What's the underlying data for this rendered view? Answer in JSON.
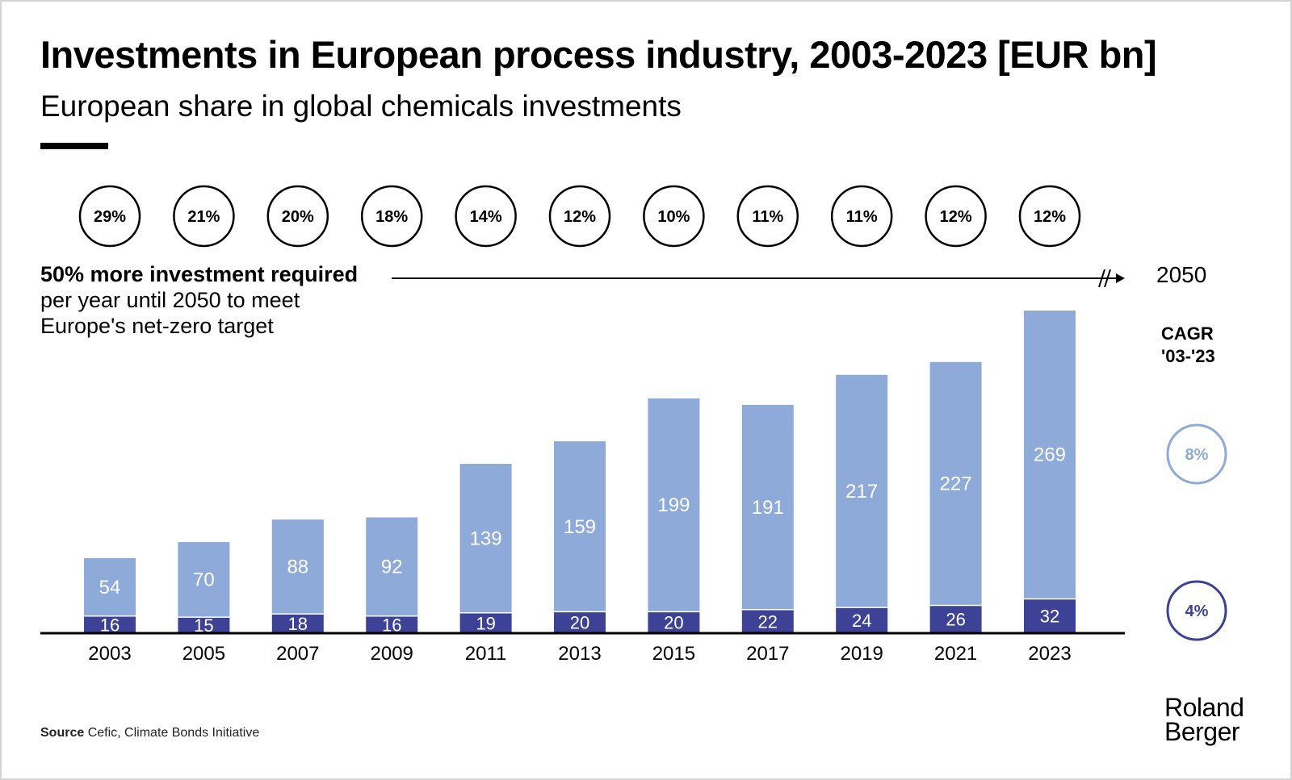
{
  "title": "Investments in European process industry, 2003-2023 [EUR bn]",
  "subtitle": "European share in global chemicals investments",
  "note": {
    "bold": "50% more investment required",
    "line1": "per year until 2050 to meet",
    "line2": "Europe's net-zero target"
  },
  "end_year": "2050",
  "cagr": {
    "label_line1": "CAGR",
    "label_line2": "'03-'23",
    "upper": "8%",
    "lower": "4%"
  },
  "source": {
    "label": "Source",
    "text": "Cefic, Climate Bonds Initiative"
  },
  "logo": {
    "line1": "Roland",
    "line2": "Berger"
  },
  "colors": {
    "upper_series": "#8eaad9",
    "lower_series": "#3e4296",
    "text": "#000000"
  },
  "chart_data": {
    "type": "bar",
    "stacked": true,
    "categories": [
      "2003",
      "2005",
      "2007",
      "2009",
      "2011",
      "2013",
      "2015",
      "2017",
      "2019",
      "2021",
      "2023"
    ],
    "series": [
      {
        "values": [
          16,
          15,
          18,
          16,
          19,
          20,
          20,
          22,
          24,
          26,
          32
        ]
      },
      {
        "values": [
          54,
          70,
          88,
          92,
          139,
          159,
          199,
          191,
          217,
          227,
          269
        ]
      }
    ],
    "share_labels": [
      "29%",
      "21%",
      "20%",
      "18%",
      "14%",
      "12%",
      "10%",
      "11%",
      "11%",
      "12%",
      "12%"
    ],
    "ylim": [
      0,
      301
    ]
  }
}
